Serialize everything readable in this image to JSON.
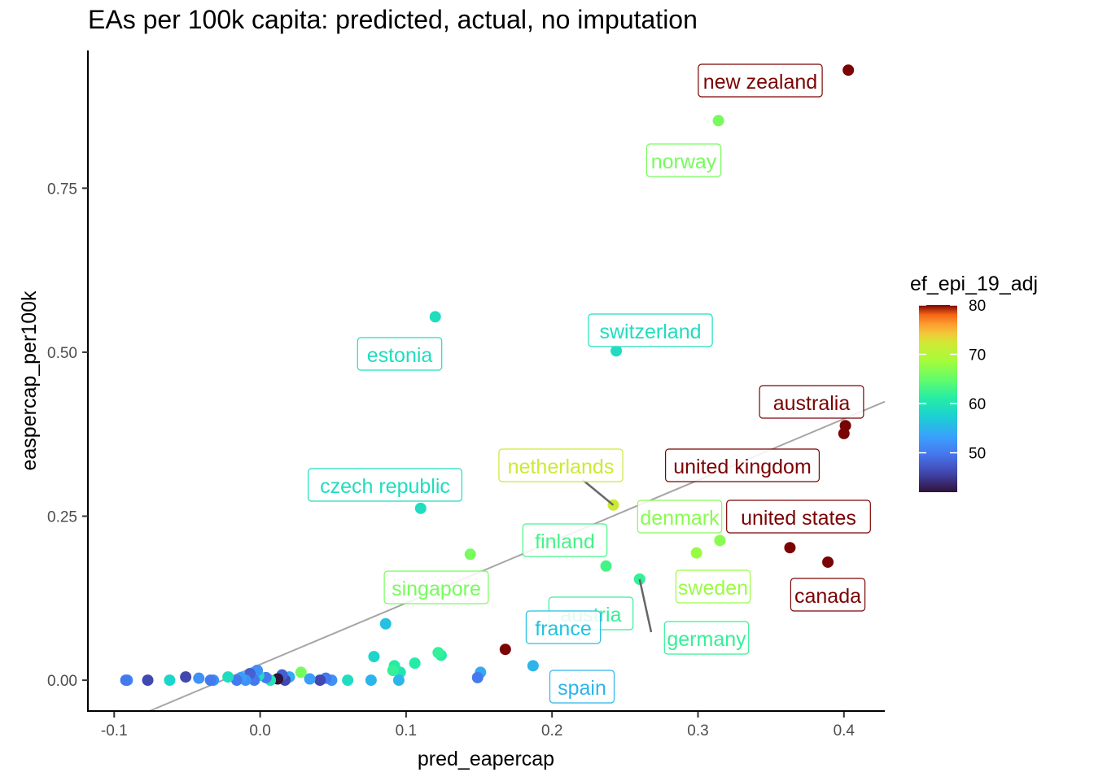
{
  "chart_data": {
    "type": "scatter",
    "title": "EAs per 100k capita: predicted, actual, no imputation",
    "xlabel": "pred_eapercap",
    "ylabel": "easpercap_per100k",
    "xlim": [
      -0.118,
      0.428
    ],
    "ylim": [
      -0.047,
      0.96
    ],
    "xticks": [
      -0.1,
      0.0,
      0.1,
      0.2,
      0.3,
      0.4
    ],
    "xtick_labels": [
      "-0.1",
      "0.0",
      "0.1",
      "0.2",
      "0.3",
      "0.4"
    ],
    "yticks": [
      0.0,
      0.25,
      0.5,
      0.75
    ],
    "ytick_labels": [
      "0.00",
      "0.25",
      "0.50",
      "0.75"
    ],
    "grid": false,
    "legend": {
      "title": "ef_epi_19_adj",
      "placement": "right",
      "colormap": "turbo",
      "range": [
        42,
        80
      ],
      "ticks": [
        50,
        60,
        70,
        80
      ]
    },
    "regression_line": {
      "color": "#a6a6a6",
      "intercept": 0.024,
      "slope": 0.936
    },
    "labeled_points": [
      {
        "label": "new zealand",
        "x": 0.403,
        "y": 0.93,
        "c": 80
      },
      {
        "label": "norway",
        "x": 0.314,
        "y": 0.853,
        "c": 66
      },
      {
        "label": "switzerland",
        "x": 0.244,
        "y": 0.502,
        "c": 59
      },
      {
        "label": "estonia",
        "x": 0.12,
        "y": 0.554,
        "c": 59
      },
      {
        "label": "australia",
        "x": 0.401,
        "y": 0.388,
        "c": 80
      },
      {
        "label": "united kingdom",
        "x": 0.4,
        "y": 0.376,
        "c": 80
      },
      {
        "label": "netherlands",
        "x": 0.242,
        "y": 0.267,
        "c": 72
      },
      {
        "label": "czech republic",
        "x": 0.11,
        "y": 0.262,
        "c": 59
      },
      {
        "label": "denmark",
        "x": 0.315,
        "y": 0.213,
        "c": 67
      },
      {
        "label": "united states",
        "x": 0.363,
        "y": 0.202,
        "c": 80
      },
      {
        "label": "finland",
        "x": 0.237,
        "y": 0.174,
        "c": 63
      },
      {
        "label": "singapore",
        "x": 0.144,
        "y": 0.192,
        "c": 66
      },
      {
        "label": "sweden",
        "x": 0.299,
        "y": 0.194,
        "c": 68
      },
      {
        "label": "canada",
        "x": 0.389,
        "y": 0.18,
        "c": 80
      },
      {
        "label": "austria",
        "x": 0.26,
        "y": 0.154,
        "c": 62
      },
      {
        "label": "germany",
        "x": 0.26,
        "y": 0.154,
        "c": 62
      },
      {
        "label": "france",
        "x": 0.086,
        "y": 0.086,
        "c": 56
      },
      {
        "label": "spain",
        "x": 0.187,
        "y": 0.022,
        "c": 55
      }
    ],
    "points": [
      {
        "x": 0.168,
        "y": 0.047,
        "c": 80
      },
      {
        "x": 0.124,
        "y": 0.038,
        "c": 61
      },
      {
        "x": 0.122,
        "y": 0.042,
        "c": 62
      },
      {
        "x": 0.106,
        "y": 0.026,
        "c": 61
      },
      {
        "x": 0.096,
        "y": 0.012,
        "c": 60
      },
      {
        "x": 0.092,
        "y": 0.022,
        "c": 61
      },
      {
        "x": 0.091,
        "y": 0.015,
        "c": 62
      },
      {
        "x": 0.078,
        "y": 0.036,
        "c": 58
      },
      {
        "x": 0.151,
        "y": 0.012,
        "c": 54
      },
      {
        "x": 0.149,
        "y": 0.004,
        "c": 50
      },
      {
        "x": 0.095,
        "y": 0.0,
        "c": 55
      },
      {
        "x": 0.076,
        "y": 0.0,
        "c": 55
      },
      {
        "x": 0.06,
        "y": 0.0,
        "c": 59
      },
      {
        "x": 0.049,
        "y": 0.0,
        "c": 52
      },
      {
        "x": 0.045,
        "y": 0.003,
        "c": 50
      },
      {
        "x": 0.041,
        "y": 0.0,
        "c": 46
      },
      {
        "x": 0.034,
        "y": 0.002,
        "c": 53
      },
      {
        "x": 0.028,
        "y": 0.012,
        "c": 66
      },
      {
        "x": 0.02,
        "y": 0.005,
        "c": 54
      },
      {
        "x": 0.017,
        "y": 0.0,
        "c": 46
      },
      {
        "x": 0.015,
        "y": 0.008,
        "c": 48
      },
      {
        "x": 0.012,
        "y": 0.002,
        "c": 42
      },
      {
        "x": 0.007,
        "y": 0.0,
        "c": 60
      },
      {
        "x": 0.004,
        "y": 0.004,
        "c": 50
      },
      {
        "x": -0.001,
        "y": 0.007,
        "c": 59
      },
      {
        "x": -0.002,
        "y": 0.015,
        "c": 52
      },
      {
        "x": -0.004,
        "y": 0.0,
        "c": 50
      },
      {
        "x": -0.007,
        "y": 0.01,
        "c": 48
      },
      {
        "x": -0.01,
        "y": 0.0,
        "c": 52
      },
      {
        "x": -0.013,
        "y": 0.004,
        "c": 53
      },
      {
        "x": -0.016,
        "y": 0.0,
        "c": 50
      },
      {
        "x": -0.022,
        "y": 0.005,
        "c": 59
      },
      {
        "x": -0.032,
        "y": 0.0,
        "c": 52
      },
      {
        "x": -0.034,
        "y": 0.0,
        "c": 50
      },
      {
        "x": -0.042,
        "y": 0.003,
        "c": 52
      },
      {
        "x": -0.051,
        "y": 0.005,
        "c": 46
      },
      {
        "x": -0.062,
        "y": 0.0,
        "c": 58
      },
      {
        "x": -0.077,
        "y": 0.0,
        "c": 46
      },
      {
        "x": -0.091,
        "y": 0.0,
        "c": 52
      },
      {
        "x": -0.092,
        "y": 0.0,
        "c": 50
      }
    ]
  }
}
